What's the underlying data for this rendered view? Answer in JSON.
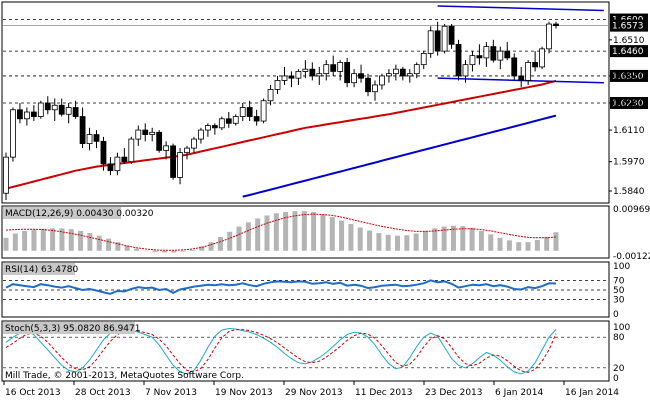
{
  "colors": {
    "background": "#ffffff",
    "frame": "#000000",
    "grid": "#000000",
    "candle_body_bull": "#ffffff",
    "candle_body_bear": "#000000",
    "ma_fast": "#cc0000",
    "ma_slow": "#0000cc",
    "trendline": "#0000cc",
    "macd_hist": "#b4b4b4",
    "macd_signal": "#cc0000",
    "rsi_line": "#1e6ec8",
    "stoch_main": "#1eaac8",
    "stoch_signal": "#cc0000",
    "price_label_bg": "#000000",
    "price_label_fg": "#ffffff"
  },
  "watermark": "Mill Trade, © 2001-2013, MetaQuotes Software Corp.",
  "chart_data": [
    {
      "type": "candlestick",
      "pane": "price",
      "ylim": [
        1.58,
        1.666
      ],
      "y_axis_labels": [
        "1.6510",
        "1.6350",
        "1.6230",
        "1.6110",
        "1.5970",
        "1.5840"
      ],
      "horizontal_levels": [
        {
          "value": 1.66,
          "label": "1.6600",
          "style": "dashed"
        },
        {
          "value": 1.646,
          "label": "1.6460",
          "style": "dashed"
        },
        {
          "value": 1.635,
          "label": "1.6350",
          "style": "dashed"
        },
        {
          "value": 1.623,
          "label": "1.6230",
          "style": "dashed"
        }
      ],
      "current_price": {
        "value": 1.6573,
        "label": "1.6573"
      },
      "x_labels": [
        "16 Oct 2013",
        "28 Oct 2013",
        "7 Nov 2013",
        "19 Nov 2013",
        "29 Nov 2013",
        "11 Dec 2013",
        "23 Dec 2013",
        "6 Jan 2014",
        "16 Jan 2014"
      ],
      "candles": [
        [
          1.583,
          1.601,
          1.58,
          1.599
        ],
        [
          1.599,
          1.621,
          1.597,
          1.62
        ],
        [
          1.62,
          1.623,
          1.614,
          1.616
        ],
        [
          1.616,
          1.621,
          1.613,
          1.619
        ],
        [
          1.619,
          1.622,
          1.615,
          1.617
        ],
        [
          1.617,
          1.624,
          1.616,
          1.623
        ],
        [
          1.623,
          1.626,
          1.618,
          1.62
        ],
        [
          1.62,
          1.625,
          1.615,
          1.622
        ],
        [
          1.622,
          1.625,
          1.617,
          1.618
        ],
        [
          1.618,
          1.623,
          1.614,
          1.621
        ],
        [
          1.621,
          1.624,
          1.616,
          1.617
        ],
        [
          1.617,
          1.621,
          1.603,
          1.605
        ],
        [
          1.605,
          1.612,
          1.602,
          1.609
        ],
        [
          1.609,
          1.611,
          1.603,
          1.606
        ],
        [
          1.606,
          1.608,
          1.593,
          1.596
        ],
        [
          1.596,
          1.599,
          1.591,
          1.593
        ],
        [
          1.593,
          1.601,
          1.591,
          1.599
        ],
        [
          1.599,
          1.603,
          1.596,
          1.597
        ],
        [
          1.597,
          1.608,
          1.596,
          1.607
        ],
        [
          1.607,
          1.613,
          1.604,
          1.611
        ],
        [
          1.611,
          1.614,
          1.606,
          1.609
        ],
        [
          1.609,
          1.612,
          1.606,
          1.61
        ],
        [
          1.61,
          1.611,
          1.601,
          1.602
        ],
        [
          1.602,
          1.606,
          1.598,
          1.604
        ],
        [
          1.604,
          1.605,
          1.589,
          1.59
        ],
        [
          1.59,
          1.603,
          1.587,
          1.601
        ],
        [
          1.601,
          1.604,
          1.598,
          1.603
        ],
        [
          1.603,
          1.608,
          1.601,
          1.607
        ],
        [
          1.607,
          1.612,
          1.605,
          1.611
        ],
        [
          1.611,
          1.614,
          1.608,
          1.613
        ],
        [
          1.613,
          1.614,
          1.609,
          1.612
        ],
        [
          1.612,
          1.617,
          1.611,
          1.616
        ],
        [
          1.616,
          1.619,
          1.612,
          1.614
        ],
        [
          1.614,
          1.618,
          1.613,
          1.617
        ],
        [
          1.617,
          1.623,
          1.615,
          1.621
        ],
        [
          1.621,
          1.624,
          1.615,
          1.617
        ],
        [
          1.617,
          1.62,
          1.613,
          1.615
        ],
        [
          1.615,
          1.625,
          1.614,
          1.624
        ],
        [
          1.624,
          1.631,
          1.622,
          1.629
        ],
        [
          1.629,
          1.635,
          1.627,
          1.633
        ],
        [
          1.633,
          1.639,
          1.631,
          1.635
        ],
        [
          1.635,
          1.637,
          1.63,
          1.634
        ],
        [
          1.634,
          1.638,
          1.631,
          1.637
        ],
        [
          1.637,
          1.642,
          1.634,
          1.638
        ],
        [
          1.638,
          1.641,
          1.633,
          1.635
        ],
        [
          1.635,
          1.639,
          1.631,
          1.636
        ],
        [
          1.636,
          1.642,
          1.633,
          1.64
        ],
        [
          1.64,
          1.644,
          1.635,
          1.637
        ],
        [
          1.637,
          1.642,
          1.633,
          1.641
        ],
        [
          1.641,
          1.643,
          1.63,
          1.632
        ],
        [
          1.632,
          1.638,
          1.63,
          1.636
        ],
        [
          1.636,
          1.64,
          1.632,
          1.634
        ],
        [
          1.634,
          1.636,
          1.626,
          1.628
        ],
        [
          1.628,
          1.633,
          1.624,
          1.631
        ],
        [
          1.631,
          1.636,
          1.629,
          1.635
        ],
        [
          1.635,
          1.638,
          1.632,
          1.636
        ],
        [
          1.636,
          1.64,
          1.633,
          1.638
        ],
        [
          1.638,
          1.639,
          1.633,
          1.635
        ],
        [
          1.635,
          1.638,
          1.632,
          1.636
        ],
        [
          1.636,
          1.641,
          1.634,
          1.64
        ],
        [
          1.64,
          1.646,
          1.638,
          1.645
        ],
        [
          1.645,
          1.657,
          1.643,
          1.655
        ],
        [
          1.655,
          1.659,
          1.644,
          1.646
        ],
        [
          1.646,
          1.658,
          1.645,
          1.657
        ],
        [
          1.657,
          1.658,
          1.647,
          1.649
        ],
        [
          1.649,
          1.651,
          1.633,
          1.635
        ],
        [
          1.635,
          1.642,
          1.632,
          1.64
        ],
        [
          1.64,
          1.646,
          1.637,
          1.644
        ],
        [
          1.644,
          1.649,
          1.64,
          1.643
        ],
        [
          1.643,
          1.65,
          1.639,
          1.648
        ],
        [
          1.648,
          1.651,
          1.641,
          1.642
        ],
        [
          1.642,
          1.648,
          1.638,
          1.646
        ],
        [
          1.646,
          1.65,
          1.642,
          1.643
        ],
        [
          1.643,
          1.645,
          1.633,
          1.635
        ],
        [
          1.635,
          1.639,
          1.63,
          1.633
        ],
        [
          1.633,
          1.642,
          1.631,
          1.641
        ],
        [
          1.641,
          1.646,
          1.637,
          1.639
        ],
        [
          1.639,
          1.648,
          1.638,
          1.647
        ],
        [
          1.647,
          1.659,
          1.645,
          1.658
        ],
        [
          1.658,
          1.659,
          1.656,
          1.6573
        ]
      ],
      "overlays": [
        {
          "kind": "moving-average-fast",
          "color_key": "ma_fast",
          "values": [
            1.585,
            1.5858,
            1.5866,
            1.5874,
            1.5882,
            1.589,
            1.5898,
            1.5906,
            1.5914,
            1.5922,
            1.593,
            1.5936,
            1.5942,
            1.5948,
            1.5952,
            1.5956,
            1.596,
            1.5964,
            1.5968,
            1.5972,
            1.5976,
            1.598,
            1.5984,
            1.5988,
            1.5992,
            1.5996,
            1.6001,
            1.6008,
            1.6015,
            1.6022,
            1.6029,
            1.6036,
            1.6043,
            1.605,
            1.6057,
            1.6064,
            1.6071,
            1.6078,
            1.6085,
            1.6092,
            1.6099,
            1.6106,
            1.6113,
            1.612,
            1.6125,
            1.613,
            1.6135,
            1.614,
            1.6145,
            1.615,
            1.6155,
            1.616,
            1.6165,
            1.617,
            1.6175,
            1.618,
            1.6186,
            1.6192,
            1.6198,
            1.6204,
            1.621,
            1.6216,
            1.6222,
            1.6228,
            1.6234,
            1.624,
            1.6246,
            1.6252,
            1.6258,
            1.6264,
            1.627,
            1.6276,
            1.6282,
            1.6288,
            1.6294,
            1.63,
            1.6306,
            1.6312,
            1.632,
            1.6328
          ]
        },
        {
          "kind": "moving-average-slow",
          "color_key": "ma_slow",
          "start_index": 34,
          "values": [
            1.5815,
            1.5822,
            1.583,
            1.5838,
            1.5846,
            1.5854,
            1.5862,
            1.587,
            1.5878,
            1.5886,
            1.5894,
            1.5902,
            1.591,
            1.5918,
            1.5926,
            1.5934,
            1.5942,
            1.595,
            1.5958,
            1.5966,
            1.5974,
            1.5982,
            1.599,
            1.5998,
            1.6006,
            1.6014,
            1.6022,
            1.603,
            1.6038,
            1.6046,
            1.6054,
            1.6062,
            1.607,
            1.6078,
            1.6086,
            1.6094,
            1.6102,
            1.611,
            1.6118,
            1.6126,
            1.6134,
            1.6142,
            1.615,
            1.6158,
            1.6166,
            1.6174
          ]
        }
      ],
      "trendlines": [
        {
          "from": [
            62,
            1.666
          ],
          "to": [
            83,
            1.664
          ]
        },
        {
          "from": [
            62,
            1.634
          ],
          "to": [
            83,
            1.632
          ]
        }
      ]
    },
    {
      "type": "histogram",
      "pane": "macd",
      "title": "MACD(12,26,9) 0.00430 0.00320",
      "y_axis_labels": [
        "0.00969",
        "-0.00122"
      ],
      "ylim": [
        -0.00122,
        0.00969
      ],
      "histogram": [
        0.003,
        0.004,
        0.0046,
        0.0049,
        0.0051,
        0.0052,
        0.0052,
        0.005,
        0.0046,
        0.0041,
        0.0035,
        0.0028,
        0.002,
        0.0012,
        0.0005,
        0.0,
        -0.0003,
        -0.0004,
        -0.0004,
        -0.0002,
        0.0002,
        0.001,
        0.002,
        0.0032,
        0.0044,
        0.0056,
        0.0066,
        0.0075,
        0.0082,
        0.0087,
        0.009,
        0.0092,
        0.0092,
        0.009,
        0.0085,
        0.0078,
        0.007,
        0.0062,
        0.0054,
        0.0047,
        0.0041,
        0.0037,
        0.0035,
        0.0036,
        0.004,
        0.0046,
        0.0052,
        0.0056,
        0.0058,
        0.0057,
        0.0053,
        0.0046,
        0.0038,
        0.003,
        0.0024,
        0.002,
        0.002,
        0.0025,
        0.0032,
        0.0043
      ],
      "signal": [
        0.0048,
        0.0049,
        0.005,
        0.005,
        0.0049,
        0.0047,
        0.0044,
        0.004,
        0.0036,
        0.0031,
        0.0026,
        0.0021,
        0.0016,
        0.0011,
        0.0007,
        0.0004,
        0.0002,
        0.0001,
        0.0001,
        0.0002,
        0.0004,
        0.0008,
        0.0014,
        0.0021,
        0.0029,
        0.0038,
        0.0047,
        0.0056,
        0.0064,
        0.0071,
        0.0077,
        0.0081,
        0.0084,
        0.0085,
        0.0084,
        0.0082,
        0.0078,
        0.0073,
        0.0068,
        0.0063,
        0.0058,
        0.0054,
        0.005,
        0.0047,
        0.0045,
        0.0045,
        0.0046,
        0.0048,
        0.005,
        0.0051,
        0.0051,
        0.0049,
        0.0046,
        0.0042,
        0.0038,
        0.0034,
        0.0031,
        0.003,
        0.003,
        0.0032
      ]
    },
    {
      "type": "line",
      "pane": "rsi",
      "title": "RSI(14) 63.4780",
      "y_axis_labels": [
        "100",
        "70",
        "50",
        "30",
        "0"
      ],
      "ylim": [
        0,
        100
      ],
      "levels": [
        70,
        50,
        30
      ],
      "values": [
        55,
        62,
        60,
        58,
        56,
        62,
        60,
        57,
        55,
        58,
        54,
        50,
        52,
        49,
        45,
        42,
        48,
        47,
        52,
        56,
        54,
        55,
        50,
        52,
        44,
        51,
        54,
        57,
        59,
        61,
        60,
        62,
        60,
        61,
        64,
        60,
        58,
        63,
        66,
        68,
        67,
        66,
        68,
        67,
        63,
        64,
        66,
        63,
        65,
        59,
        61,
        59,
        54,
        56,
        59,
        60,
        61,
        58,
        59,
        61,
        64,
        70,
        66,
        68,
        63,
        55,
        58,
        61,
        60,
        62,
        58,
        60,
        57,
        52,
        51,
        56,
        54,
        58,
        64,
        63.478
      ]
    },
    {
      "type": "line",
      "pane": "stochastic",
      "title": "Stoch(5,3,3) 95.0820 86.9471",
      "y_axis_labels": [
        "100",
        "80",
        "20",
        "0"
      ],
      "ylim": [
        0,
        100
      ],
      "levels": [
        80,
        20
      ],
      "series": [
        {
          "name": "main",
          "color_key": "stoch_main",
          "values": [
            70,
            80,
            88,
            92,
            85,
            70,
            55,
            40,
            25,
            15,
            12,
            20,
            35,
            55,
            75,
            88,
            92,
            95,
            93,
            90,
            85,
            80,
            65,
            45,
            25,
            12,
            8,
            15,
            35,
            60,
            82,
            94,
            97,
            96,
            93,
            90,
            85,
            78,
            70,
            60,
            48,
            38,
            30,
            28,
            32,
            40,
            50,
            62,
            75,
            85,
            90,
            88,
            80,
            65,
            45,
            28,
            18,
            22,
            40,
            62,
            80,
            88,
            82,
            60,
            38,
            25,
            20,
            28,
            40,
            50,
            45,
            35,
            22,
            12,
            8,
            14,
            30,
            55,
            80,
            95.082
          ]
        },
        {
          "name": "signal",
          "color_key": "stoch_signal",
          "values": [
            60,
            68,
            78,
            86,
            88,
            82,
            70,
            55,
            40,
            27,
            18,
            16,
            22,
            36,
            55,
            72,
            85,
            92,
            93,
            92,
            89,
            85,
            76,
            63,
            45,
            28,
            15,
            12,
            19,
            36,
            59,
            79,
            91,
            95,
            95,
            93,
            89,
            84,
            77,
            69,
            59,
            49,
            39,
            32,
            30,
            33,
            41,
            51,
            62,
            74,
            83,
            88,
            86,
            78,
            63,
            46,
            30,
            23,
            27,
            41,
            61,
            77,
            83,
            77,
            60,
            41,
            28,
            24,
            29,
            39,
            45,
            43,
            34,
            23,
            14,
            11,
            17,
            33,
            55,
            86.947
          ]
        }
      ]
    }
  ]
}
